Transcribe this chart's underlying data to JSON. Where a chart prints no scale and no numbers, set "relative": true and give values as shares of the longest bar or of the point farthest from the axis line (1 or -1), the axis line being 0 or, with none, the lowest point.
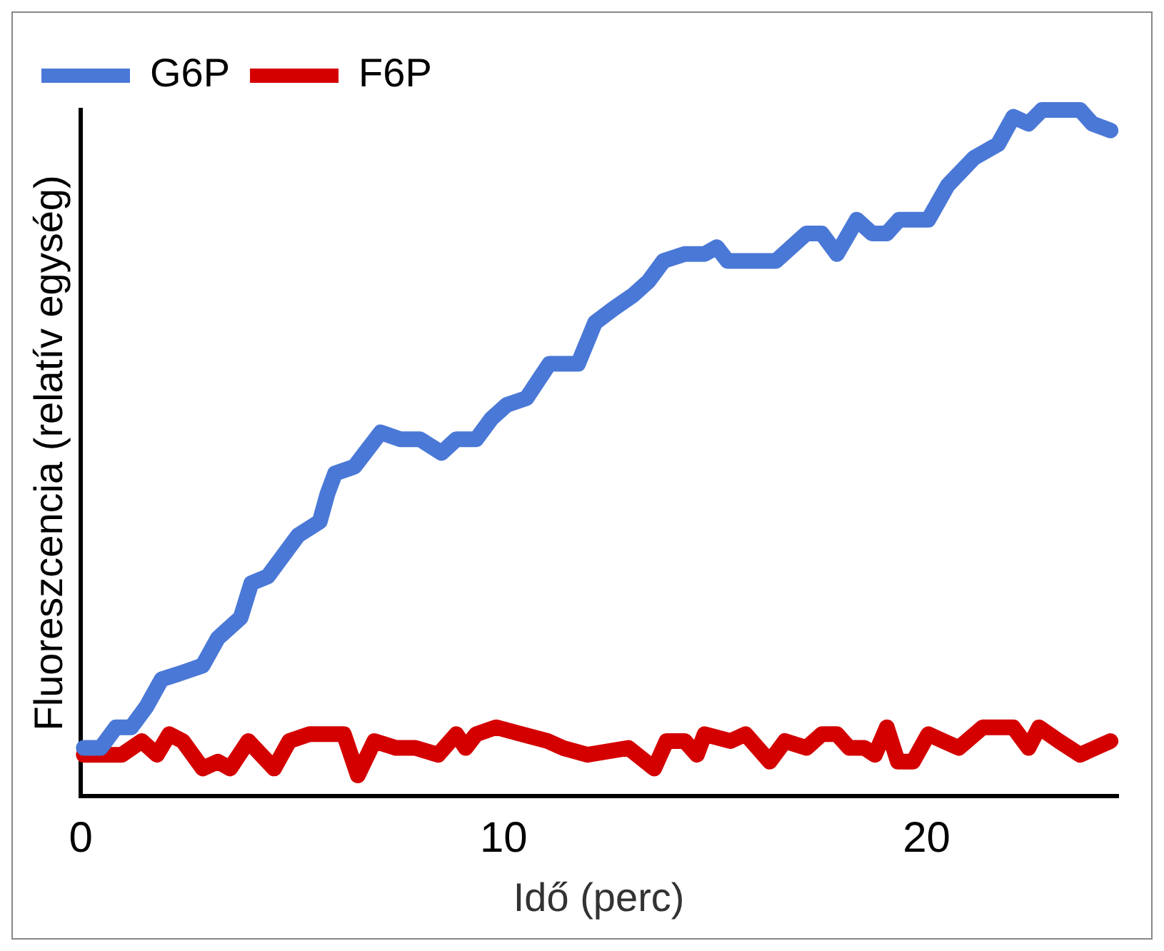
{
  "chart_data": {
    "type": "line",
    "xlabel": "Idő (perc)",
    "ylabel": "Fluoreszcencia (relatív egység)",
    "relative": true,
    "xlim": [
      0,
      24.5
    ],
    "xticks": [
      0,
      10,
      20
    ],
    "legend": "top left",
    "grid": false,
    "marker": "none",
    "line_style": "solid",
    "series": [
      {
        "name": "G6P",
        "color": "#4a78d6",
        "x": [
          0.07,
          0.47,
          0.83,
          1.19,
          1.55,
          1.91,
          2.41,
          2.88,
          3.24,
          3.42,
          3.78,
          4.03,
          4.42,
          4.78,
          5.14,
          5.65,
          5.83,
          6.01,
          6.47,
          7.09,
          7.55,
          8.02,
          8.53,
          8.88,
          9.35,
          9.71,
          10.07,
          10.54,
          11.08,
          11.76,
          12.16,
          12.59,
          13.06,
          13.42,
          13.78,
          14.28,
          14.75,
          15.04,
          15.29,
          15.83,
          16.44,
          17.16,
          17.52,
          17.88,
          18.35,
          18.71,
          19.06,
          19.35,
          20.04,
          20.5,
          21.12,
          21.69,
          22.05,
          22.41,
          22.73,
          23.13,
          23.63,
          23.92,
          24.35
        ],
        "values": [
          0.07,
          0.07,
          0.1,
          0.1,
          0.13,
          0.17,
          0.18,
          0.19,
          0.23,
          0.24,
          0.26,
          0.31,
          0.32,
          0.35,
          0.38,
          0.4,
          0.44,
          0.47,
          0.48,
          0.53,
          0.52,
          0.52,
          0.5,
          0.52,
          0.52,
          0.55,
          0.57,
          0.58,
          0.63,
          0.63,
          0.69,
          0.71,
          0.73,
          0.75,
          0.78,
          0.79,
          0.79,
          0.8,
          0.78,
          0.78,
          0.78,
          0.82,
          0.82,
          0.79,
          0.84,
          0.82,
          0.82,
          0.84,
          0.84,
          0.89,
          0.93,
          0.95,
          0.99,
          0.98,
          1,
          1,
          1,
          0.98,
          0.97
        ]
      },
      {
        "name": "F6P",
        "color": "#d40000",
        "x": [
          0.07,
          0.47,
          0.97,
          1.44,
          1.8,
          2.09,
          2.41,
          2.88,
          3.24,
          3.53,
          3.96,
          4.57,
          4.93,
          5.4,
          5.86,
          6.22,
          6.55,
          6.94,
          7.45,
          7.91,
          8.45,
          8.88,
          9.1,
          9.35,
          9.82,
          10.43,
          11.04,
          11.4,
          11.98,
          12.95,
          13.56,
          13.85,
          14.28,
          14.57,
          14.75,
          15.36,
          15.72,
          16.29,
          16.65,
          17.16,
          17.52,
          17.88,
          18.17,
          18.53,
          18.78,
          19.06,
          19.32,
          19.68,
          20.04,
          20.4,
          20.76,
          21.33,
          22.05,
          22.41,
          22.66,
          23.13,
          23.63,
          23.99,
          24.35
        ],
        "values": [
          0.06,
          0.06,
          0.06,
          0.08,
          0.06,
          0.09,
          0.08,
          0.04,
          0.05,
          0.04,
          0.08,
          0.04,
          0.08,
          0.09,
          0.09,
          0.09,
          0.03,
          0.08,
          0.07,
          0.07,
          0.06,
          0.09,
          0.07,
          0.09,
          0.1,
          0.09,
          0.08,
          0.07,
          0.06,
          0.07,
          0.04,
          0.08,
          0.08,
          0.06,
          0.09,
          0.08,
          0.09,
          0.05,
          0.08,
          0.07,
          0.09,
          0.09,
          0.07,
          0.07,
          0.06,
          0.1,
          0.05,
          0.05,
          0.09,
          0.08,
          0.07,
          0.1,
          0.1,
          0.07,
          0.1,
          0.08,
          0.06,
          0.07,
          0.08
        ]
      }
    ]
  }
}
